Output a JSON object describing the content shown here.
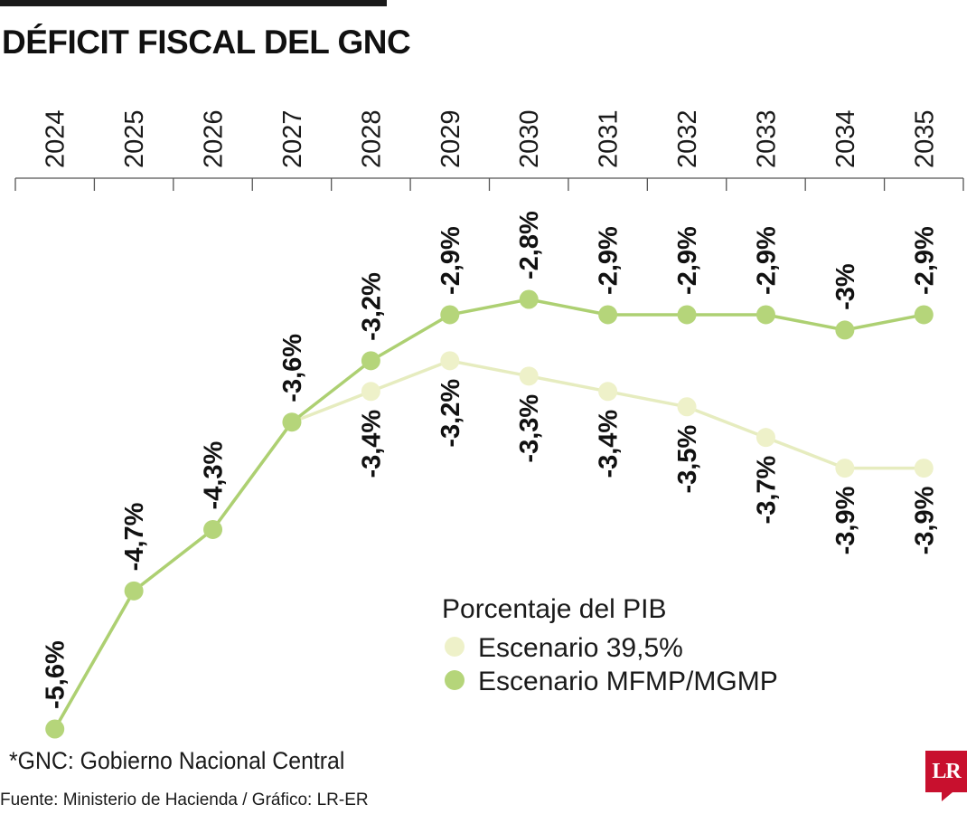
{
  "title": "DÉFICIT FISCAL DEL GNC",
  "footnote": "*GNC: Gobierno Nacional Central",
  "source": "Fuente: Ministerio de Hacienda / Gráfico: LR-ER",
  "logo_text": "LR",
  "colors": {
    "series_light": "#eef1c9",
    "series_dark": "#b5d57a",
    "line_light": "#e6ecbf",
    "line_dark": "#add072",
    "logo": "#c8102e"
  },
  "chart_data": {
    "type": "line",
    "title": "DÉFICIT FISCAL DEL GNC",
    "x": [
      "2024",
      "2025",
      "2026",
      "2027",
      "2028",
      "2029",
      "2030",
      "2031",
      "2032",
      "2033",
      "2034",
      "2035"
    ],
    "y_unit": "Porcentaje del PIB",
    "ylim": [
      -5.6,
      -2.8
    ],
    "grid": false,
    "legend_position": "bottom-right",
    "legend_title": "Porcentaje del PIB",
    "series": [
      {
        "name": "Escenario 39,5%",
        "values": [
          -5.6,
          -4.7,
          -4.3,
          -3.6,
          -3.4,
          -3.2,
          -3.3,
          -3.4,
          -3.5,
          -3.7,
          -3.9,
          -3.9
        ],
        "labels": [
          "",
          "",
          "",
          "",
          "-3,4%",
          "-3,2%",
          "-3,3%",
          "-3,4%",
          "-3,5%",
          "-3,7%",
          "-3,9%",
          "-3,9%"
        ]
      },
      {
        "name": "Escenario MFMP/MGMP",
        "values": [
          -5.6,
          -4.7,
          -4.3,
          -3.6,
          -3.2,
          -2.9,
          -2.8,
          -2.9,
          -2.9,
          -2.9,
          -3.0,
          -2.9
        ],
        "labels": [
          "-5,6%",
          "-4,7%",
          "-4,3%",
          "-3,6%",
          "-3,2%",
          "-2,9%",
          "-2,8%",
          "-2,9%",
          "-2,9%",
          "-2,9%",
          "-3%",
          "-2,9%"
        ]
      }
    ]
  }
}
